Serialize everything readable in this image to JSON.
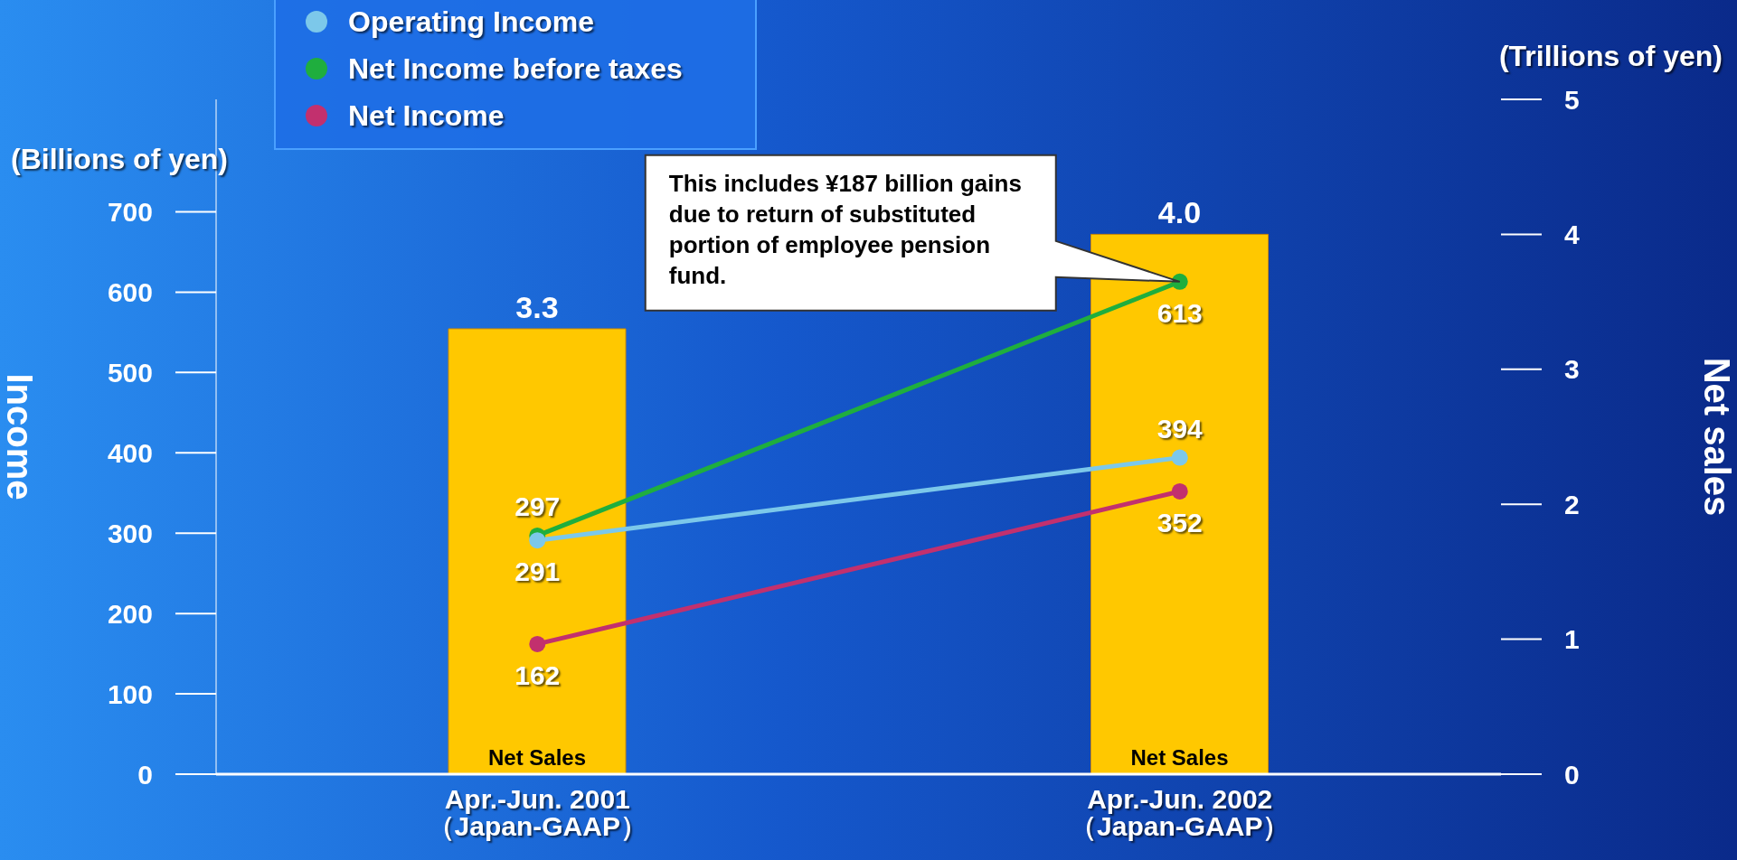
{
  "chart_data": {
    "type": "line",
    "categories": [
      "Apr.-Jun. 2001\n（Japan-GAAP）",
      "Apr.-Jun. 2002\n（Japan-GAAP）"
    ],
    "series": [
      {
        "name": "Net Sales",
        "type": "bar",
        "axis": "y2",
        "color": "#ffc800",
        "values": [
          3.3,
          4.0
        ],
        "value_labels": [
          "3.3",
          "4.0"
        ]
      },
      {
        "name": "Operating Income",
        "color": "#7cc8ea",
        "values": [
          291,
          394
        ]
      },
      {
        "name": "Net Income before taxes",
        "color": "#1fae3e",
        "values": [
          297,
          613
        ]
      },
      {
        "name": "Net Income",
        "color": "#c2306e",
        "values": [
          162,
          352
        ]
      }
    ],
    "ylabel": "Income",
    "y2label": "Net sales",
    "ylim": [
      0,
      840
    ],
    "yticks": [
      0,
      100,
      200,
      300,
      400,
      500,
      600,
      700
    ],
    "y2lim": [
      0,
      5
    ],
    "y2ticks": [
      0,
      1,
      2,
      3,
      4,
      5
    ],
    "annotations": [
      "(Billions of yen)",
      "(Trillions of yen)",
      "This includes ¥187 billion gains due to return of substituted portion of employee pension fund."
    ],
    "data_labels": true,
    "marker": "circle",
    "legend": "top left"
  }
}
